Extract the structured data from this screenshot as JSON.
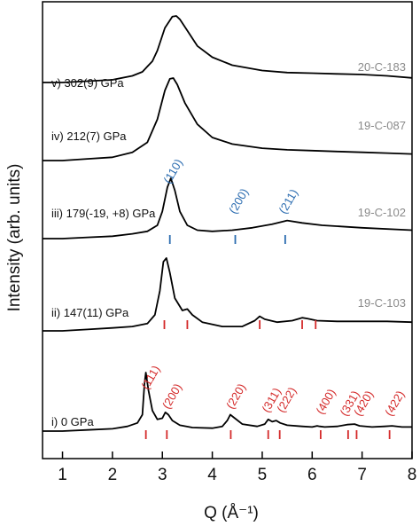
{
  "chart_data": {
    "type": "line",
    "xlabel": "Q (Å⁻¹)",
    "ylabel": "Intensity (arb. units)",
    "xlim": [
      0.6,
      8
    ],
    "xticks": [
      1,
      2,
      3,
      4,
      5,
      6,
      7,
      8
    ],
    "yticks": "none",
    "grid": false,
    "legend": "none",
    "colors": {
      "trace": "#000000",
      "fcc_ticks": "#d42a2a",
      "bcc_ticks": "#2b6cb0",
      "sample_id": "#8a8a8a"
    },
    "series": [
      {
        "name": "i) 0 GPa",
        "sample": "",
        "x": [
          0.6,
          1.0,
          1.5,
          2.0,
          2.3,
          2.5,
          2.6,
          2.64,
          2.67,
          2.72,
          2.8,
          2.9,
          3.0,
          3.06,
          3.12,
          3.2,
          3.35,
          3.6,
          4.0,
          4.2,
          4.3,
          4.36,
          4.45,
          4.6,
          4.9,
          5.05,
          5.12,
          5.2,
          5.28,
          5.36,
          5.5,
          5.8,
          6.0,
          6.1,
          6.15,
          6.25,
          6.5,
          6.7,
          6.85,
          6.95,
          7.2,
          7.45,
          7.6,
          7.8,
          8.0
        ],
        "y": [
          0,
          0,
          0.02,
          0.04,
          0.08,
          0.14,
          0.28,
          0.8,
          1.0,
          0.7,
          0.35,
          0.2,
          0.22,
          0.32,
          0.28,
          0.18,
          0.1,
          0.06,
          0.05,
          0.08,
          0.18,
          0.28,
          0.22,
          0.12,
          0.08,
          0.12,
          0.2,
          0.16,
          0.18,
          0.14,
          0.1,
          0.08,
          0.07,
          0.09,
          0.08,
          0.07,
          0.08,
          0.11,
          0.12,
          0.09,
          0.07,
          0.08,
          0.09,
          0.07,
          0.07
        ]
      },
      {
        "name": "ii) 147(11) GPa",
        "sample": "19-C-103",
        "x": [
          0.6,
          1.0,
          1.5,
          2.0,
          2.4,
          2.7,
          2.85,
          2.95,
          3.02,
          3.08,
          3.15,
          3.25,
          3.4,
          3.5,
          3.6,
          3.8,
          4.2,
          4.6,
          4.85,
          4.95,
          5.05,
          5.3,
          5.6,
          5.8,
          5.9,
          6.1,
          6.5,
          7.0,
          7.5,
          8.0
        ],
        "y": [
          0,
          0,
          0.02,
          0.04,
          0.06,
          0.1,
          0.22,
          0.55,
          0.95,
          1.0,
          0.8,
          0.45,
          0.28,
          0.3,
          0.22,
          0.12,
          0.06,
          0.06,
          0.14,
          0.2,
          0.16,
          0.12,
          0.14,
          0.18,
          0.17,
          0.14,
          0.13,
          0.13,
          0.13,
          0.12
        ]
      },
      {
        "name": "iii) 179(-19, +8) GPa",
        "sample": "19-C-102",
        "x": [
          0.6,
          1.0,
          1.5,
          2.0,
          2.4,
          2.7,
          2.9,
          3.0,
          3.1,
          3.17,
          3.25,
          3.35,
          3.5,
          3.7,
          4.0,
          4.4,
          4.8,
          5.2,
          5.5,
          5.8,
          6.2,
          7.0,
          8.0
        ],
        "y": [
          0,
          0,
          0.02,
          0.04,
          0.08,
          0.12,
          0.22,
          0.45,
          0.85,
          1.0,
          0.8,
          0.45,
          0.22,
          0.14,
          0.12,
          0.14,
          0.18,
          0.24,
          0.3,
          0.26,
          0.22,
          0.18,
          0.14
        ]
      },
      {
        "name": "iv) 212(7) GPa",
        "sample": "19-C-087",
        "x": [
          0.6,
          1.0,
          1.5,
          2.0,
          2.4,
          2.7,
          2.9,
          3.05,
          3.15,
          3.22,
          3.3,
          3.45,
          3.7,
          4.0,
          4.4,
          5.0,
          5.5,
          6.0,
          6.5,
          7.0,
          7.5,
          8.0
        ],
        "y": [
          0,
          0,
          0.02,
          0.04,
          0.1,
          0.22,
          0.5,
          0.85,
          0.99,
          1.0,
          0.92,
          0.7,
          0.44,
          0.28,
          0.2,
          0.15,
          0.13,
          0.12,
          0.11,
          0.1,
          0.09,
          0.08
        ]
      },
      {
        "name": "v) 302(9) GPa",
        "sample": "20-C-183",
        "x": [
          0.6,
          1.0,
          1.5,
          2.0,
          2.4,
          2.6,
          2.7,
          2.8,
          2.9,
          3.05,
          3.2,
          3.28,
          3.35,
          3.5,
          3.7,
          4.0,
          4.4,
          5.0,
          5.5,
          6.0,
          6.5,
          7.0,
          7.5,
          8.0
        ],
        "y": [
          0,
          0,
          0.02,
          0.04,
          0.1,
          0.16,
          0.24,
          0.32,
          0.48,
          0.82,
          0.99,
          1.0,
          0.95,
          0.78,
          0.55,
          0.38,
          0.26,
          0.18,
          0.15,
          0.14,
          0.13,
          0.12,
          0.1,
          0.07
        ]
      }
    ],
    "reflections": [
      {
        "trace": "i) 0 GPa",
        "color": "#d42a2a",
        "positions": [
          2.67,
          3.09,
          4.37,
          5.12,
          5.35,
          6.17,
          6.72,
          6.89,
          7.55
        ],
        "labels": [
          {
            "hkl": "(111)",
            "x": 2.67
          },
          {
            "hkl": "(200)",
            "x": 3.09
          },
          {
            "hkl": "(220)",
            "x": 4.37
          },
          {
            "hkl": "(311)",
            "x": 5.12
          },
          {
            "hkl": "(222)",
            "x": 5.35
          },
          {
            "hkl": "(400)",
            "x": 6.17
          },
          {
            "hkl": "(331)",
            "x": 6.72
          },
          {
            "hkl": "(420)",
            "x": 6.89
          },
          {
            "hkl": "(422)",
            "x": 7.55
          }
        ]
      },
      {
        "trace": "ii) 147(11) GPa",
        "color": "#d42a2a",
        "positions": [
          3.04,
          3.5,
          4.95,
          5.8,
          6.07
        ],
        "labels": []
      },
      {
        "trace": "iii) 179(-19, +8) GPa",
        "color": "#2b6cb0",
        "positions": [
          3.15,
          4.46,
          5.46
        ],
        "labels": [
          {
            "hkl": "(110)",
            "x": 3.15
          },
          {
            "hkl": "(200)",
            "x": 4.46
          },
          {
            "hkl": "(211)",
            "x": 5.46
          }
        ]
      }
    ]
  }
}
